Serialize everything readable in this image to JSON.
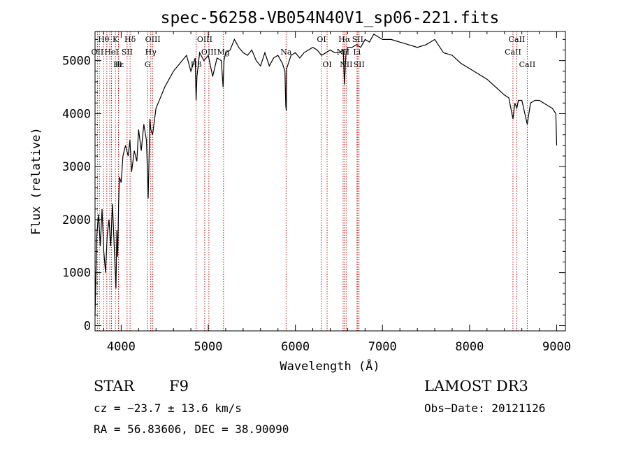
{
  "chart_data": {
    "type": "line",
    "title": "spec-56258-VB054N40V1_sp06-221.fits",
    "xlabel": "Wavelength (Å)",
    "ylabel": "Flux (relative)",
    "xlim": [
      3700,
      9100
    ],
    "ylim": [
      -100,
      5550
    ],
    "xticks": [
      4000,
      5000,
      6000,
      7000,
      8000,
      9000
    ],
    "yticks": [
      0,
      1000,
      2000,
      3000,
      4000,
      5000
    ],
    "xtick_labels": [
      "4000",
      "5000",
      "6000",
      "7000",
      "8000",
      "9000"
    ],
    "ytick_labels": [
      "0",
      "1000",
      "2000",
      "3000",
      "4000",
      "5000"
    ],
    "series": [
      {
        "name": "flux",
        "x": [
          3700,
          3720,
          3740,
          3760,
          3780,
          3800,
          3820,
          3840,
          3860,
          3880,
          3900,
          3920,
          3940,
          3950,
          3960,
          3970,
          3980,
          4000,
          4020,
          4050,
          4080,
          4100,
          4120,
          4150,
          4180,
          4200,
          4230,
          4260,
          4290,
          4300,
          4310,
          4330,
          4340,
          4360,
          4400,
          4450,
          4500,
          4550,
          4600,
          4650,
          4700,
          4750,
          4800,
          4850,
          4860,
          4870,
          4900,
          4950,
          5000,
          5050,
          5100,
          5150,
          5170,
          5180,
          5200,
          5250,
          5300,
          5350,
          5400,
          5450,
          5500,
          5550,
          5600,
          5650,
          5700,
          5750,
          5800,
          5850,
          5880,
          5890,
          5896,
          5900,
          5950,
          6000,
          6050,
          6100,
          6150,
          6200,
          6250,
          6300,
          6350,
          6400,
          6450,
          6500,
          6550,
          6563,
          6580,
          6600,
          6650,
          6700,
          6750,
          6800,
          6850,
          6900,
          6950,
          7000,
          7100,
          7200,
          7300,
          7400,
          7500,
          7600,
          7700,
          7800,
          7900,
          8000,
          8100,
          8200,
          8300,
          8400,
          8450,
          8498,
          8520,
          8542,
          8560,
          8600,
          8662,
          8700,
          8750,
          8800,
          8850,
          8900,
          8950,
          8990,
          9000
        ],
        "y": [
          200,
          1700,
          2100,
          1500,
          2200,
          1400,
          1000,
          1700,
          2000,
          1500,
          2300,
          1500,
          700,
          1800,
          1300,
          2300,
          2800,
          2700,
          3200,
          3400,
          3200,
          3500,
          2900,
          3300,
          3100,
          3700,
          3300,
          3800,
          3500,
          3000,
          2400,
          3900,
          3700,
          3600,
          4100,
          4300,
          4500,
          4650,
          4800,
          4900,
          5000,
          5100,
          4800,
          5050,
          4250,
          4700,
          5150,
          5000,
          5100,
          4700,
          5050,
          5000,
          4500,
          5000,
          5150,
          5200,
          5400,
          5250,
          5150,
          5100,
          5200,
          5000,
          4900,
          5150,
          4900,
          5050,
          5100,
          4950,
          4800,
          4150,
          4050,
          4850,
          5100,
          5150,
          5050,
          5150,
          5200,
          5250,
          5200,
          5100,
          5150,
          5200,
          5150,
          5150,
          5200,
          4550,
          5100,
          5250,
          5250,
          5300,
          5250,
          5400,
          5350,
          5500,
          5450,
          5400,
          5400,
          5350,
          5300,
          5250,
          5300,
          5400,
          5150,
          5100,
          4950,
          4850,
          4750,
          4650,
          4500,
          4350,
          4300,
          3900,
          4200,
          4100,
          4250,
          4250,
          3800,
          4200,
          4250,
          4250,
          4200,
          4150,
          4100,
          4000,
          3400
        ],
        "color": "#000000"
      }
    ],
    "line_markers": [
      {
        "wavelength": 3727,
        "label": "OII",
        "row": 1
      },
      {
        "wavelength": 3750,
        "label": "",
        "row": 0
      },
      {
        "wavelength": 3798,
        "label": "Hθ",
        "row": 0
      },
      {
        "wavelength": 3835,
        "label": "",
        "row": 0
      },
      {
        "wavelength": 3869,
        "label": "",
        "row": 0
      },
      {
        "wavelength": 3889,
        "label": "HeI",
        "row": 1
      },
      {
        "wavelength": 3934,
        "label": "K",
        "row": 0
      },
      {
        "wavelength": 3970,
        "label": "Hε",
        "row": 2
      },
      {
        "wavelength": 3969,
        "label": "H",
        "row": 2
      },
      {
        "wavelength": 4068,
        "label": "SII",
        "row": 1
      },
      {
        "wavelength": 4102,
        "label": "Hδ",
        "row": 0
      },
      {
        "wavelength": 4304,
        "label": "G",
        "row": 2
      },
      {
        "wavelength": 4340,
        "label": "Hγ",
        "row": 1
      },
      {
        "wavelength": 4363,
        "label": "OIII",
        "row": 0
      },
      {
        "wavelength": 4861,
        "label": "Hβ",
        "row": 2
      },
      {
        "wavelength": 4959,
        "label": "OIII",
        "row": 0
      },
      {
        "wavelength": 5007,
        "label": "OIII",
        "row": 1
      },
      {
        "wavelength": 5175,
        "label": "Mg",
        "row": 1
      },
      {
        "wavelength": 5893,
        "label": "Na",
        "row": 1
      },
      {
        "wavelength": 6300,
        "label": "OI",
        "row": 0
      },
      {
        "wavelength": 6364,
        "label": "OI",
        "row": 2
      },
      {
        "wavelength": 6548,
        "label": "NII",
        "row": 1
      },
      {
        "wavelength": 6563,
        "label": "Hα",
        "row": 0
      },
      {
        "wavelength": 6583,
        "label": "NII",
        "row": 2
      },
      {
        "wavelength": 6707,
        "label": "Li",
        "row": 1
      },
      {
        "wavelength": 6716,
        "label": "SII",
        "row": 0
      },
      {
        "wavelength": 6731,
        "label": "SII",
        "row": 2
      },
      {
        "wavelength": 8498,
        "label": "CaII",
        "row": 1
      },
      {
        "wavelength": 8542,
        "label": "CaII",
        "row": 0
      },
      {
        "wavelength": 8662,
        "label": "CaII",
        "row": 2
      }
    ]
  },
  "info": {
    "object_class": "STAR",
    "subclass": "F9",
    "survey": "LAMOST DR3",
    "cz_text": "cz = −23.7 ± 13.6 km/s",
    "obs_date_text": "Obs−Date: 20121126",
    "coords_text": "RA =  56.83606, DEC =  38.90090"
  },
  "colors": {
    "marker_line": "#c00000",
    "spectrum": "#000000",
    "axes": "#000000"
  }
}
